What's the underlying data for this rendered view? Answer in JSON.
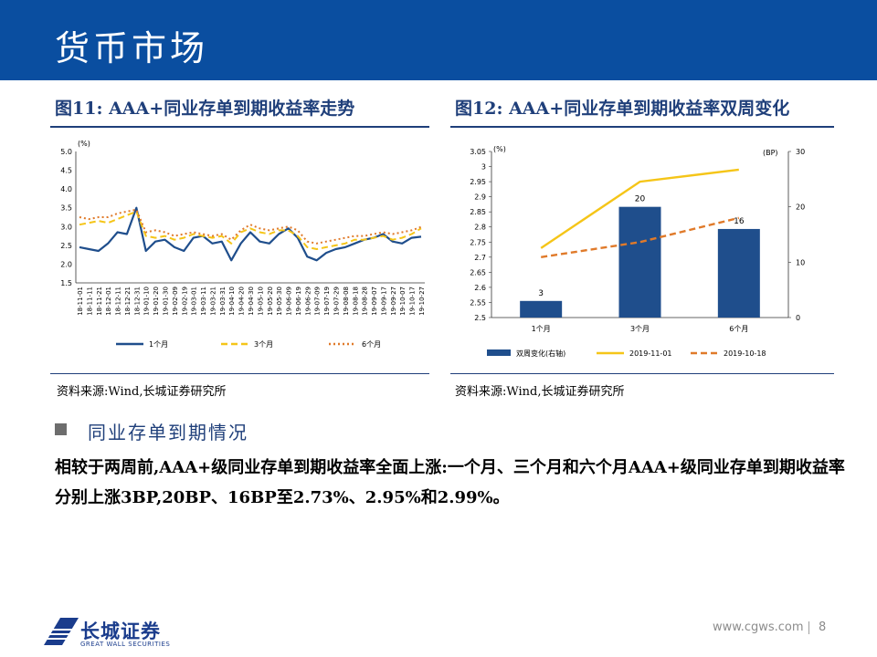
{
  "header": {
    "title": "货币市场"
  },
  "figure11": {
    "heading": "图11:  AAA+同业存单到期收益率走势",
    "source": "资料来源:Wind,长城证券研究所"
  },
  "figure12": {
    "heading": "图12:  AAA+同业存单到期收益率双周变化",
    "source": "资料来源:Wind,长城证券研究所"
  },
  "section": {
    "heading": "同业存单到期情况"
  },
  "body": {
    "text": "相较于两周前,AAA+级同业存单到期收益率全面上涨:一个月、三个月和六个月AAA+级同业存单到期收益率分别上涨3BP,20BP、16BP至2.73%、2.95%和2.99%。"
  },
  "footer": {
    "brand": "长城证券",
    "brand_en": "GREAT WALL SECURITIES",
    "url": "www.cgws.com",
    "page": "8"
  },
  "colors": {
    "banner": "#0a4ea0",
    "series_1m": "#1f4e8c",
    "series_3m": "#f5c518",
    "series_6m": "#e07a2a",
    "bar": "#1f4e8c"
  },
  "chart_data": [
    {
      "type": "line",
      "ylabel": "(%)",
      "ylim": [
        1.5,
        5.0
      ],
      "yticks": [
        5.0,
        4.5,
        4.0,
        3.5,
        3.0,
        2.5,
        2.0,
        1.5
      ],
      "categories": [
        "18-11-01",
        "18-11-11",
        "18-11-21",
        "18-12-01",
        "18-12-11",
        "18-12-21",
        "18-12-31",
        "19-01-10",
        "19-01-20",
        "19-01-30",
        "19-02-09",
        "19-02-19",
        "19-03-01",
        "19-03-11",
        "19-03-21",
        "19-03-31",
        "19-04-10",
        "19-04-20",
        "19-04-30",
        "19-05-10",
        "19-05-20",
        "19-05-30",
        "19-06-09",
        "19-06-19",
        "19-06-29",
        "19-07-09",
        "19-07-19",
        "19-07-29",
        "19-08-08",
        "19-08-18",
        "19-08-28",
        "19-09-07",
        "19-09-17",
        "19-09-27",
        "19-10-07",
        "19-10-17",
        "19-10-27"
      ],
      "series": [
        {
          "name": "1个月",
          "style": "solid",
          "values": [
            2.45,
            2.4,
            2.35,
            2.55,
            2.85,
            2.8,
            3.5,
            2.35,
            2.6,
            2.65,
            2.45,
            2.35,
            2.7,
            2.75,
            2.55,
            2.6,
            2.1,
            2.55,
            2.85,
            2.6,
            2.55,
            2.8,
            2.95,
            2.7,
            2.2,
            2.1,
            2.3,
            2.4,
            2.45,
            2.55,
            2.65,
            2.7,
            2.8,
            2.6,
            2.55,
            2.7,
            2.73
          ]
        },
        {
          "name": "3个月",
          "style": "dashed",
          "values": [
            3.05,
            3.1,
            3.15,
            3.1,
            3.2,
            3.3,
            3.4,
            2.75,
            2.7,
            2.75,
            2.65,
            2.7,
            2.8,
            2.75,
            2.7,
            2.75,
            2.55,
            2.85,
            2.95,
            2.85,
            2.8,
            2.9,
            2.9,
            2.75,
            2.45,
            2.4,
            2.45,
            2.5,
            2.55,
            2.65,
            2.65,
            2.7,
            2.75,
            2.65,
            2.7,
            2.8,
            2.95
          ]
        },
        {
          "name": "6个月",
          "style": "dotted",
          "values": [
            3.25,
            3.2,
            3.25,
            3.25,
            3.35,
            3.4,
            3.45,
            2.85,
            2.9,
            2.85,
            2.75,
            2.8,
            2.85,
            2.8,
            2.75,
            2.8,
            2.65,
            2.9,
            3.05,
            2.95,
            2.9,
            2.95,
            3.0,
            2.9,
            2.6,
            2.55,
            2.6,
            2.65,
            2.7,
            2.75,
            2.75,
            2.8,
            2.85,
            2.8,
            2.85,
            2.9,
            2.99
          ]
        }
      ]
    },
    {
      "type": "bar+line",
      "categories": [
        "1个月",
        "3个月",
        "6个月"
      ],
      "ylabel_left": "(%)",
      "ylabel_right": "(BP)",
      "ylim_left": [
        2.5,
        3.05
      ],
      "yticks_left": [
        3.05,
        3,
        2.95,
        2.9,
        2.85,
        2.8,
        2.75,
        2.7,
        2.65,
        2.6,
        2.55,
        2.5
      ],
      "ylim_right": [
        0,
        30
      ],
      "yticks_right": [
        30,
        20,
        10,
        0
      ],
      "bars": {
        "name": "双周变化(右轴)",
        "values": [
          3,
          20,
          16
        ],
        "labels": [
          "3",
          "20",
          "16"
        ]
      },
      "series": [
        {
          "name": "2019-11-01",
          "style": "solid",
          "values": [
            2.73,
            2.95,
            2.99
          ]
        },
        {
          "name": "2019-10-18",
          "style": "dashed",
          "values": [
            2.7,
            2.75,
            2.83
          ]
        }
      ]
    }
  ]
}
